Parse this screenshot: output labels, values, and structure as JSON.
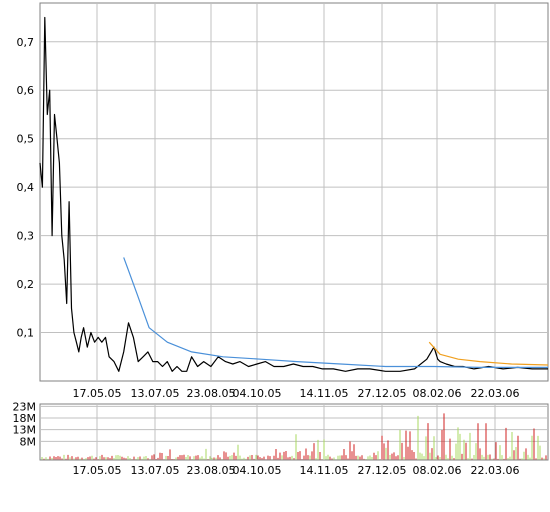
{
  "chart_data": [
    {
      "type": "line",
      "name": "price",
      "x_labels": [
        "17.05.05",
        "13.07.05",
        "23.08.05",
        "04.10.05",
        "14.11.05",
        "27.12.05",
        "08.02.06",
        "22.03.06"
      ],
      "y_ticks": [
        "0,1",
        "0,2",
        "0,3",
        "0,4",
        "0,5",
        "0,6",
        "0,7"
      ],
      "y_tick_values": [
        0.1,
        0.2,
        0.3,
        0.4,
        0.5,
        0.6,
        0.7
      ],
      "ylim": [
        0.0,
        0.78
      ],
      "x_range": [
        "2005-03-17",
        "2006-05-10"
      ],
      "grid": true,
      "colors": {
        "price": "#000000",
        "avg_long": "#4a90d9",
        "avg_short": "#f0a020",
        "grid": "#c0c0c0",
        "frame": "#808080"
      },
      "series": [
        {
          "role": "price",
          "x": [
            "2005-03-17",
            "2005-03-19",
            "2005-03-21",
            "2005-03-23",
            "2005-03-25",
            "2005-03-27",
            "2005-03-29",
            "2005-03-31",
            "2005-04-02",
            "2005-04-04",
            "2005-04-06",
            "2005-04-08",
            "2005-04-10",
            "2005-04-12",
            "2005-04-14",
            "2005-04-16",
            "2005-04-18",
            "2005-04-20",
            "2005-04-22",
            "2005-04-25",
            "2005-04-28",
            "2005-05-01",
            "2005-05-04",
            "2005-05-07",
            "2005-05-10",
            "2005-05-13",
            "2005-05-17",
            "2005-05-21",
            "2005-05-25",
            "2005-05-29",
            "2005-06-02",
            "2005-06-06",
            "2005-06-10",
            "2005-06-14",
            "2005-06-18",
            "2005-06-22",
            "2005-06-26",
            "2005-06-30",
            "2005-07-04",
            "2005-07-08",
            "2005-07-12",
            "2005-07-16",
            "2005-07-20",
            "2005-07-25",
            "2005-07-30",
            "2005-08-05",
            "2005-08-11",
            "2005-08-17",
            "2005-08-23",
            "2005-08-29",
            "2005-09-05",
            "2005-09-12",
            "2005-09-19",
            "2005-09-26",
            "2005-10-04",
            "2005-10-12",
            "2005-10-20",
            "2005-10-28",
            "2005-11-05",
            "2005-11-14",
            "2005-11-24",
            "2005-12-04",
            "2005-12-14",
            "2005-12-27",
            "2006-01-08",
            "2006-01-20",
            "2006-01-30",
            "2006-02-05",
            "2006-02-08",
            "2006-02-10",
            "2006-02-15",
            "2006-02-22",
            "2006-03-01",
            "2006-03-10",
            "2006-03-22",
            "2006-04-03",
            "2006-04-15",
            "2006-04-27",
            "2006-05-10"
          ],
          "y": [
            0.45,
            0.4,
            0.75,
            0.55,
            0.6,
            0.3,
            0.55,
            0.5,
            0.45,
            0.3,
            0.25,
            0.16,
            0.37,
            0.15,
            0.1,
            0.08,
            0.06,
            0.09,
            0.11,
            0.07,
            0.1,
            0.08,
            0.09,
            0.08,
            0.09,
            0.05,
            0.04,
            0.02,
            0.06,
            0.12,
            0.09,
            0.04,
            0.05,
            0.06,
            0.04,
            0.04,
            0.03,
            0.04,
            0.02,
            0.03,
            0.02,
            0.02,
            0.05,
            0.03,
            0.04,
            0.03,
            0.05,
            0.04,
            0.035,
            0.04,
            0.03,
            0.035,
            0.04,
            0.03,
            0.03,
            0.035,
            0.03,
            0.03,
            0.025,
            0.025,
            0.02,
            0.025,
            0.025,
            0.02,
            0.02,
            0.025,
            0.045,
            0.07,
            0.045,
            0.04,
            0.035,
            0.03,
            0.03,
            0.025,
            0.03,
            0.025,
            0.028,
            0.025,
            0.025
          ]
        },
        {
          "role": "avg_long",
          "x": [
            "2005-05-25",
            "2005-06-05",
            "2005-06-15",
            "2005-06-30",
            "2005-07-20",
            "2005-08-15",
            "2005-09-15",
            "2005-10-15",
            "2005-11-20",
            "2005-12-27",
            "2006-02-05",
            "2006-03-15",
            "2006-05-10"
          ],
          "y": [
            0.255,
            0.18,
            0.11,
            0.08,
            0.06,
            0.05,
            0.045,
            0.04,
            0.035,
            0.03,
            0.03,
            0.028,
            0.028
          ]
        },
        {
          "role": "avg_short",
          "x": [
            "2006-02-01",
            "2006-02-10",
            "2006-02-25",
            "2006-03-15",
            "2006-04-10",
            "2006-05-10"
          ],
          "y": [
            0.08,
            0.055,
            0.045,
            0.04,
            0.035,
            0.033
          ]
        }
      ]
    },
    {
      "type": "bar",
      "name": "volume",
      "x_labels": [
        "17.05.05",
        "13.07.05",
        "23.08.05",
        "04.10.05",
        "14.11.05",
        "27.12.05",
        "08.02.06",
        "22.03.06"
      ],
      "y_ticks": [
        "8M",
        "13M",
        "18M",
        "23M"
      ],
      "y_tick_values": [
        8,
        13,
        18,
        23
      ],
      "ylim": [
        0,
        24
      ],
      "unit": "M",
      "colors": {
        "up": "#a8d860",
        "down": "#d02020"
      }
    }
  ]
}
